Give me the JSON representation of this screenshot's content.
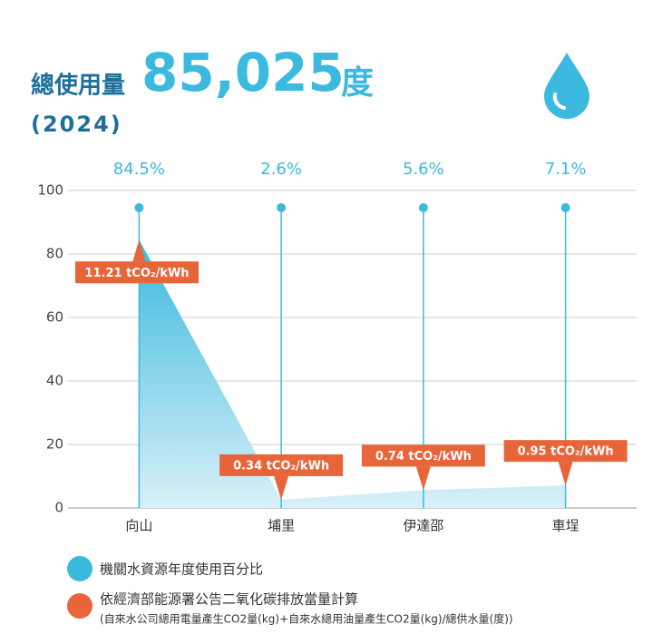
{
  "chart_data": {
    "type": "area",
    "title_prefix": "總使用量",
    "total": "85,025",
    "unit": "度",
    "subtitle": "(2024)",
    "categories": [
      "向山",
      "埔里",
      "伊達邵",
      "車埕"
    ],
    "series": [
      {
        "name": "機關水資源年度使用百分比",
        "color": "#3bb9de",
        "values": [
          84.5,
          2.6,
          5.6,
          7.1
        ],
        "value_labels": [
          "84.5%",
          "2.6%",
          "5.6%",
          "7.1%"
        ]
      }
    ],
    "annotations": [
      "11.21 tCO₂/kWh",
      "0.34 tCO₂/kWh",
      "0.74 tCO₂/kWh",
      "0.95 tCO₂/kWh"
    ],
    "annotation_color": "#e8653a",
    "note": "依經濟部能源署公告二氧化碳排放當量計算",
    "note_detail": "(自來水公司總用電量產生CO2量(kg)+自來水總用油量產生CO2量(kg)/總供水量(度))",
    "ylim": [
      0,
      100
    ],
    "yticks": [
      0,
      20,
      40,
      60,
      80,
      100
    ],
    "grid": true
  }
}
